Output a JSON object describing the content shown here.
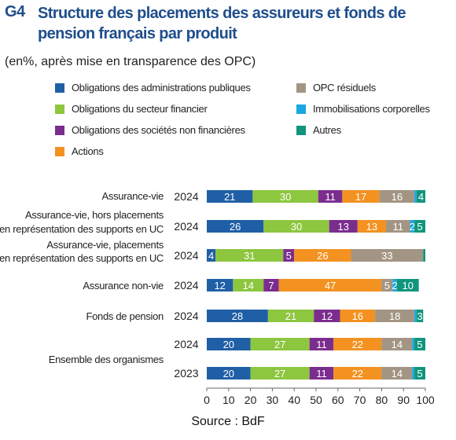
{
  "header": {
    "code": "G4",
    "title": "Structure des placements des assureurs et fonds de pension français par produit",
    "subtitle": "(en%, après mise en transparence des OPC)"
  },
  "source": "Source : BdF",
  "colors": {
    "obligations_admin": "#1f5fa6",
    "obligations_fin": "#8dc63f",
    "obligations_snf": "#7b2d8e",
    "actions": "#f39221",
    "opc_residuels": "#a39583",
    "immobilisations": "#1aa7e0",
    "autres": "#10957c"
  },
  "chart_data": {
    "type": "bar",
    "orientation": "horizontal",
    "stacked": true,
    "xlim": [
      0,
      100
    ],
    "xticks": [
      "0",
      "10",
      "20",
      "30",
      "40",
      "50",
      "60",
      "70",
      "80",
      "90",
      "100"
    ],
    "legend_position": "top",
    "grid": false,
    "rows": [
      {
        "group": "Assurance-vie",
        "year": "2024"
      },
      {
        "group": "Assurance-vie, hors placements en représentation des supports en UC",
        "year": "2024"
      },
      {
        "group": "Assurance-vie, placements en représentation des supports en UC",
        "year": "2024"
      },
      {
        "group": "Assurance non-vie",
        "year": "2024"
      },
      {
        "group": "Fonds de pension",
        "year": "2024"
      },
      {
        "group": "Ensemble des organismes",
        "year": "2024"
      },
      {
        "group": "Ensemble des organismes",
        "year": "2023"
      }
    ],
    "series": [
      {
        "name": "Obligations des administrations publiques",
        "color": "#1f5fa6",
        "values": [
          21,
          26,
          4,
          12,
          28,
          20,
          20
        ]
      },
      {
        "name": "Obligations du secteur financier",
        "color": "#8dc63f",
        "values": [
          30,
          30,
          31,
          14,
          21,
          27,
          27
        ]
      },
      {
        "name": "Obligations des sociétés non financières",
        "color": "#7b2d8e",
        "values": [
          11,
          13,
          5,
          7,
          12,
          11,
          11
        ]
      },
      {
        "name": "Actions",
        "color": "#f39221",
        "values": [
          17,
          13,
          26,
          47,
          16,
          22,
          22
        ]
      },
      {
        "name": "OPC résiduels",
        "color": "#a39583",
        "values": [
          16,
          11,
          33,
          5,
          18,
          14,
          14
        ]
      },
      {
        "name": "Immobilisations corporelles",
        "color": "#1aa7e0",
        "values": [
          1,
          2,
          0,
          2,
          1,
          1,
          1
        ]
      },
      {
        "name": "Autres",
        "color": "#10957c",
        "values": [
          4,
          5,
          1,
          10,
          3,
          5,
          5
        ]
      }
    ],
    "data_labels": [
      [
        "21",
        "30",
        "11",
        "17",
        "16",
        "",
        "4"
      ],
      [
        "26",
        "30",
        "13",
        "13",
        "11",
        "2",
        "5"
      ],
      [
        "4",
        "31",
        "5",
        "26",
        "33",
        "",
        ""
      ],
      [
        "12",
        "14",
        "7",
        "47",
        "5",
        "2",
        "10"
      ],
      [
        "28",
        "21",
        "12",
        "16",
        "18",
        "",
        "3"
      ],
      [
        "20",
        "27",
        "11",
        "22",
        "14",
        "",
        "5"
      ],
      [
        "20",
        "27",
        "11",
        "22",
        "14",
        "",
        "5"
      ]
    ]
  }
}
